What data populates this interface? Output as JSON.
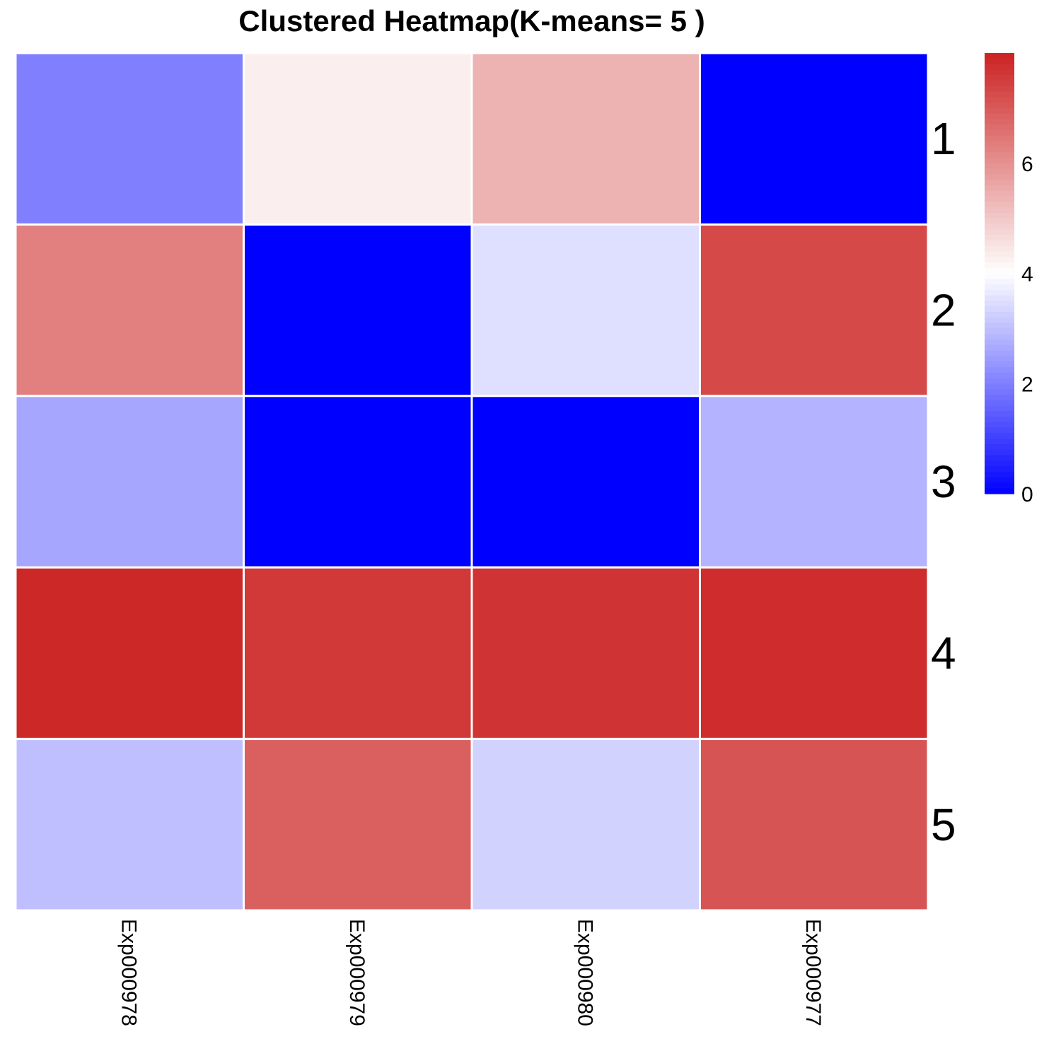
{
  "chart_data": {
    "type": "heatmap",
    "title": "Clustered Heatmap(K-means= 5 )",
    "rows": [
      "1",
      "2",
      "3",
      "4",
      "5"
    ],
    "columns": [
      "Exp000978",
      "Exp000979",
      "Exp000980",
      "Exp000977"
    ],
    "values": [
      [
        2.0,
        4.3,
        5.4,
        0.0
      ],
      [
        6.3,
        0.0,
        3.5,
        7.3
      ],
      [
        2.6,
        0.0,
        0.0,
        2.8
      ],
      [
        7.9,
        7.6,
        7.7,
        7.8
      ],
      [
        3.0,
        6.9,
        3.3,
        7.1
      ]
    ],
    "color_scale": {
      "min": 0,
      "mid": 4,
      "max": 8,
      "low_color": "#0000ff",
      "mid_color": "#ffffff",
      "high_color": "#cc2222"
    },
    "legend": {
      "ticks": [
        0,
        2,
        4,
        6
      ],
      "placement": "top-right"
    }
  }
}
